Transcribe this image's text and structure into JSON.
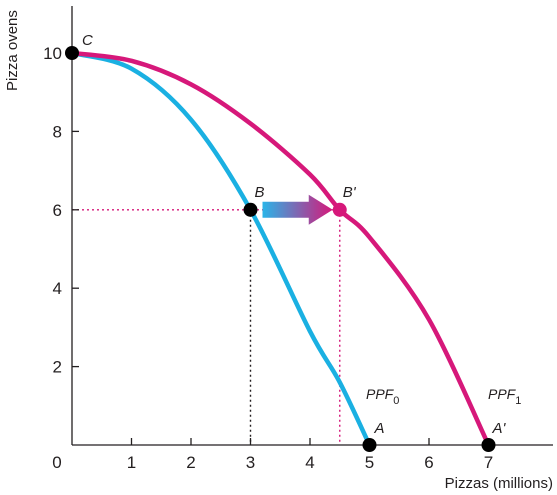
{
  "chart_data": {
    "type": "line",
    "xlabel": "Pizzas (millions)",
    "ylabel": "Pizza ovens",
    "xlim": [
      0,
      8
    ],
    "ylim": [
      0,
      11
    ],
    "x_ticks": [
      {
        "value": 0,
        "label": "0"
      },
      {
        "value": 1,
        "label": "1"
      },
      {
        "value": 2,
        "label": "2"
      },
      {
        "value": 3,
        "label": "3"
      },
      {
        "value": 4,
        "label": "4"
      },
      {
        "value": 5,
        "label": "5"
      },
      {
        "value": 6,
        "label": "6"
      },
      {
        "value": 7,
        "label": "7"
      }
    ],
    "y_ticks": [
      {
        "value": 2,
        "label": "2"
      },
      {
        "value": 4,
        "label": "4"
      },
      {
        "value": 6,
        "label": "6",
        "highlight": true
      },
      {
        "value": 8,
        "label": "8"
      },
      {
        "value": 10,
        "label": "10"
      }
    ],
    "series": [
      {
        "label": "PPF",
        "subscript": "0",
        "color": "#1ab0e2",
        "x": [
          0,
          1,
          2,
          3,
          4,
          4.5,
          5
        ],
        "y": [
          10,
          9.6,
          8.3,
          6,
          2.9,
          1.6,
          0
        ]
      },
      {
        "label": "PPF",
        "subscript": "1",
        "color": "#d6187a",
        "x": [
          0,
          1,
          2,
          3,
          4,
          4.5,
          5,
          6,
          7
        ],
        "y": [
          10,
          9.8,
          9.2,
          8.2,
          6.9,
          6,
          5.3,
          3.2,
          0
        ]
      }
    ],
    "points": [
      {
        "name": "C",
        "x": 0,
        "y": 10,
        "color": "#000000"
      },
      {
        "name": "B",
        "x": 3,
        "y": 6,
        "color": "#000000"
      },
      {
        "name": "B'",
        "x": 4.5,
        "y": 6,
        "color": "#d6187a"
      },
      {
        "name": "A",
        "x": 5,
        "y": 0,
        "color": "#000000"
      },
      {
        "name": "A'",
        "x": 7,
        "y": 0,
        "color": "#000000"
      }
    ],
    "arrow": {
      "from": "B",
      "to": "B'",
      "colors": [
        "#2ab4e8",
        "#d6187a"
      ]
    },
    "accent_color": "#d6187a",
    "grid": false
  }
}
